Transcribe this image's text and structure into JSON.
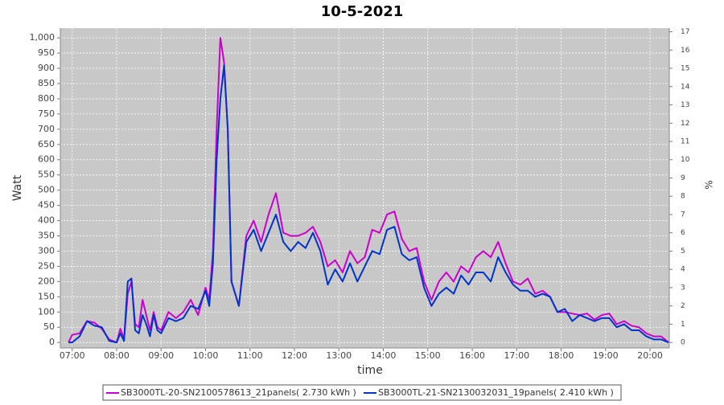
{
  "chart_data": {
    "type": "line",
    "title": "10-5-2021",
    "x_label": "time",
    "y_label": "Watt",
    "y2_label": "%",
    "x": [
      "06:55",
      "07:00",
      "07:10",
      "07:20",
      "07:30",
      "07:40",
      "07:50",
      "08:00",
      "08:05",
      "08:10",
      "08:15",
      "08:20",
      "08:25",
      "08:30",
      "08:35",
      "08:40",
      "08:45",
      "08:50",
      "08:55",
      "09:00",
      "09:10",
      "09:20",
      "09:30",
      "09:40",
      "09:50",
      "10:00",
      "10:05",
      "10:10",
      "10:15",
      "10:20",
      "10:25",
      "10:30",
      "10:35",
      "10:45",
      "10:55",
      "11:05",
      "11:15",
      "11:25",
      "11:35",
      "11:45",
      "11:55",
      "12:05",
      "12:15",
      "12:25",
      "12:35",
      "12:45",
      "12:55",
      "13:05",
      "13:15",
      "13:25",
      "13:35",
      "13:45",
      "13:55",
      "14:05",
      "14:15",
      "14:25",
      "14:35",
      "14:45",
      "14:55",
      "15:05",
      "15:15",
      "15:25",
      "15:35",
      "15:45",
      "15:55",
      "16:05",
      "16:15",
      "16:25",
      "16:35",
      "16:45",
      "16:55",
      "17:05",
      "17:15",
      "17:25",
      "17:35",
      "17:45",
      "17:55",
      "18:05",
      "18:15",
      "18:25",
      "18:35",
      "18:45",
      "18:55",
      "19:05",
      "19:15",
      "19:25",
      "19:35",
      "19:45",
      "19:55",
      "20:05",
      "20:15",
      "20:25"
    ],
    "series": [
      {
        "name": "SB3000TL-20-SN2100578613_21panels( 2.730 kWh )",
        "color": "#cc00cc",
        "values": [
          0,
          25,
          30,
          70,
          65,
          45,
          10,
          0,
          45,
          10,
          160,
          200,
          60,
          50,
          140,
          90,
          40,
          100,
          50,
          40,
          100,
          80,
          100,
          140,
          90,
          180,
          140,
          300,
          700,
          1000,
          920,
          700,
          200,
          120,
          350,
          400,
          330,
          420,
          490,
          360,
          350,
          350,
          360,
          380,
          330,
          250,
          270,
          230,
          300,
          260,
          280,
          370,
          360,
          420,
          430,
          340,
          300,
          310,
          200,
          140,
          200,
          230,
          200,
          250,
          230,
          280,
          300,
          280,
          330,
          260,
          200,
          190,
          210,
          160,
          170,
          150,
          100,
          100,
          95,
          90,
          95,
          75,
          90,
          95,
          60,
          70,
          55,
          50,
          30,
          20,
          20,
          0
        ]
      },
      {
        "name": "SB3000TL-21-SN2130032031_19panels( 2.410 kWh )",
        "color": "#0033cc",
        "values": [
          0,
          0,
          20,
          70,
          55,
          50,
          5,
          0,
          30,
          5,
          200,
          210,
          40,
          30,
          90,
          60,
          20,
          90,
          40,
          30,
          80,
          70,
          80,
          120,
          110,
          170,
          120,
          260,
          600,
          800,
          910,
          700,
          200,
          120,
          330,
          370,
          300,
          360,
          420,
          330,
          300,
          330,
          310,
          360,
          300,
          190,
          240,
          200,
          260,
          200,
          250,
          300,
          290,
          370,
          380,
          290,
          270,
          280,
          180,
          120,
          160,
          180,
          160,
          220,
          190,
          230,
          230,
          200,
          280,
          230,
          190,
          170,
          170,
          150,
          160,
          150,
          100,
          110,
          70,
          90,
          80,
          70,
          80,
          80,
          50,
          60,
          40,
          40,
          20,
          10,
          10,
          0
        ]
      }
    ],
    "xlim": [
      "06:44",
      "20:26"
    ],
    "xticks": [
      "07:00",
      "08:00",
      "09:00",
      "10:00",
      "11:00",
      "12:00",
      "13:00",
      "14:00",
      "15:00",
      "16:00",
      "17:00",
      "18:00",
      "19:00",
      "20:00"
    ],
    "ylim": [
      -18,
      1032
    ],
    "yticks": [
      0,
      50,
      100,
      150,
      200,
      250,
      300,
      350,
      400,
      450,
      500,
      550,
      600,
      650,
      700,
      750,
      800,
      850,
      900,
      950,
      {
        "value": 1000,
        "label": "1,000"
      }
    ],
    "y2lim": [
      -0.3,
      17.2
    ],
    "y2ticks": [
      0,
      1,
      2,
      3,
      4,
      5,
      6,
      7,
      8,
      9,
      10,
      11,
      12,
      13,
      14,
      15,
      16,
      17
    ],
    "grid": true
  }
}
